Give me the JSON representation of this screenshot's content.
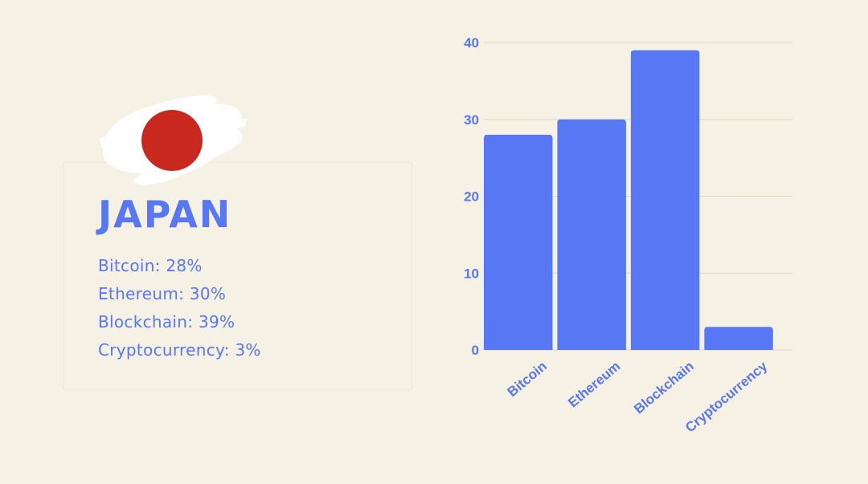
{
  "country": {
    "name": "JAPAN"
  },
  "stats": [
    {
      "label": "Bitcoin: 28%"
    },
    {
      "label": "Ethereum: 30%"
    },
    {
      "label": "Blockchain: 39%"
    },
    {
      "label": "Cryptocurrency: 3%"
    }
  ],
  "colors": {
    "background": "#f5f1e4",
    "accent": "#5777f5",
    "flag_red": "#c8281e",
    "flag_white": "#ffffff"
  },
  "chart_data": {
    "type": "bar",
    "categories": [
      "Bitcoin",
      "Ethereum",
      "Blockchain",
      "Cryptocurrency"
    ],
    "values": [
      28,
      30,
      39,
      3
    ],
    "yticks": [
      "0",
      "10",
      "20",
      "30",
      "40"
    ],
    "ylim": [
      0,
      40
    ],
    "grid": true,
    "color": "#5777f5"
  }
}
